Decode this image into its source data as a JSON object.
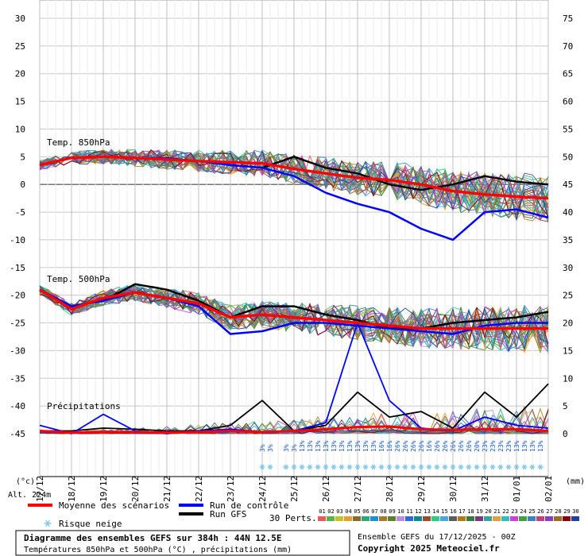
{
  "chart_data": {
    "type": "line",
    "left_axis": {
      "range": [
        -45,
        30
      ],
      "ticks": [
        30,
        25,
        20,
        15,
        10,
        5,
        0,
        -5,
        -10,
        -15,
        -20,
        -25,
        -30,
        -35,
        -40,
        -45
      ],
      "unit": "(°c)"
    },
    "right_axis": {
      "range": [
        0,
        75
      ],
      "ticks": [
        75,
        70,
        65,
        60,
        55,
        50,
        45,
        40,
        35,
        30,
        25,
        20,
        15,
        10,
        5,
        0
      ],
      "unit": "(mm)"
    },
    "x_dates": [
      "17/12",
      "18/12",
      "19/12",
      "20/12",
      "21/12",
      "22/12",
      "23/12",
      "24/12",
      "25/12",
      "26/12",
      "27/12",
      "28/12",
      "29/12",
      "30/12",
      "31/12",
      "01/01",
      "02/01"
    ],
    "x_hours": [
      0,
      384
    ],
    "grid": true,
    "section_labels": [
      "Temp. 850hPa",
      "Temp. 500hPa",
      "Précipitations"
    ],
    "altitude": "Alt. 224m",
    "snow_risk": {
      "label": "Risque neige",
      "hours": [
        168,
        174,
        186,
        192,
        198,
        204,
        210,
        216,
        222,
        228,
        234,
        240,
        246,
        252,
        258,
        264,
        270,
        276,
        282,
        288,
        294,
        300,
        306,
        312,
        318,
        324,
        330,
        336,
        342,
        348,
        354,
        360,
        366,
        372,
        378
      ],
      "percent": [
        "3%",
        "3%",
        "3%",
        "3%",
        "13%",
        "13%",
        "13%",
        "13%",
        "13%",
        "13%",
        "13%",
        "13%",
        "13%",
        "13%",
        "16%",
        "16%",
        "26%",
        "26%",
        "26%",
        "26%",
        "16%",
        "26%",
        "26%",
        "26%",
        "26%",
        "26%",
        "20%",
        "23%",
        "23%",
        "23%",
        "23%",
        "13%",
        "13%",
        "13%",
        "13%"
      ]
    },
    "legend": {
      "mean": "Moyenne des scénarios",
      "control": "Run de contrôle",
      "gfs": "Run GFS",
      "perts": "30 Perts."
    },
    "mean_color": "#ff0000",
    "control_color": "#0000ff",
    "gfs_color": "#000000",
    "member_colors": [
      "#e85a5a",
      "#59b246",
      "#c2c22b",
      "#e6a02c",
      "#8b6b2b",
      "#2ea87a",
      "#1e8fd0",
      "#a47a2a",
      "#5c7e2e",
      "#b48ee0",
      "#2d6ad8",
      "#0a8a8a",
      "#9e4b2b",
      "#26d07c",
      "#4ca4e0",
      "#5c5c5c",
      "#aa7c1c",
      "#3a7a3a",
      "#7a3a7a",
      "#3aa0a0",
      "#e0a040",
      "#2ac0c0",
      "#d040d0",
      "#40a040",
      "#4080c0",
      "#c04080",
      "#8040c0",
      "#a06a2a",
      "#8a0000",
      "#2040a0"
    ],
    "series": [
      {
        "name": "Moyenne des scénarios",
        "t850": [
          3.5,
          4.8,
          5,
          4.8,
          4.5,
          4.2,
          4,
          3.8,
          2.8,
          2,
          1.2,
          0.8,
          0,
          -1.2,
          -1.8,
          -2.2,
          -2.5
        ],
        "t500": [
          -19,
          -22.5,
          -20.5,
          -19.5,
          -20.5,
          -21.5,
          -24,
          -23.5,
          -24,
          -24.5,
          -25,
          -25.5,
          -26,
          -26,
          -26,
          -26,
          -26
        ],
        "precip": [
          0.5,
          0.2,
          0.3,
          0.3,
          0.2,
          0.3,
          0.5,
          0.3,
          0.5,
          0.8,
          1.2,
          1.3,
          0.8,
          0.7,
          0.8,
          0.8,
          0.5
        ]
      },
      {
        "name": "Run de contrôle",
        "t850": [
          3.5,
          4.8,
          5,
          4.8,
          4.7,
          4.2,
          3.5,
          3,
          1.5,
          -1.5,
          -3.5,
          -5,
          -8,
          -10,
          -5,
          -4.5,
          -6
        ],
        "t500": [
          -19,
          -22,
          -21,
          -19.5,
          -20.5,
          -22,
          -27,
          -26.5,
          -25,
          -25,
          -25.5,
          -26,
          -26.5,
          -27,
          -25.5,
          -25,
          -25
        ],
        "precip": [
          1.5,
          0,
          3.5,
          0.5,
          0,
          0.5,
          0.8,
          0.3,
          0.5,
          2,
          20,
          6,
          1,
          0.5,
          3,
          1.5,
          1
        ]
      },
      {
        "name": "Run GFS",
        "t850": [
          3.5,
          4.8,
          5,
          4.8,
          4.7,
          4.2,
          3.5,
          3,
          5,
          3,
          2,
          0,
          -1,
          0,
          1.5,
          0.5,
          0
        ],
        "t500": [
          -19,
          -22,
          -21,
          -18,
          -19,
          -21,
          -24,
          -22,
          -22,
          -23.5,
          -24.5,
          -26,
          -26,
          -25,
          -24.5,
          -24,
          -23
        ],
        "precip": [
          0.5,
          0.5,
          1,
          0.8,
          0.5,
          0.5,
          1.5,
          6,
          0.5,
          1.5,
          7.5,
          3,
          4,
          1,
          7.5,
          3,
          9
        ]
      }
    ]
  },
  "footer": {
    "title": "Diagramme des ensembles GEFS sur 384h : 44N 12.5E",
    "subtitle": "Températures 850hPa et 500hPa (°C) , précipitations (mm)",
    "run_info": "Ensemble GEFS du 17/12/2025 - 00Z",
    "copyright": "Copyright 2025 Meteociel.fr"
  }
}
